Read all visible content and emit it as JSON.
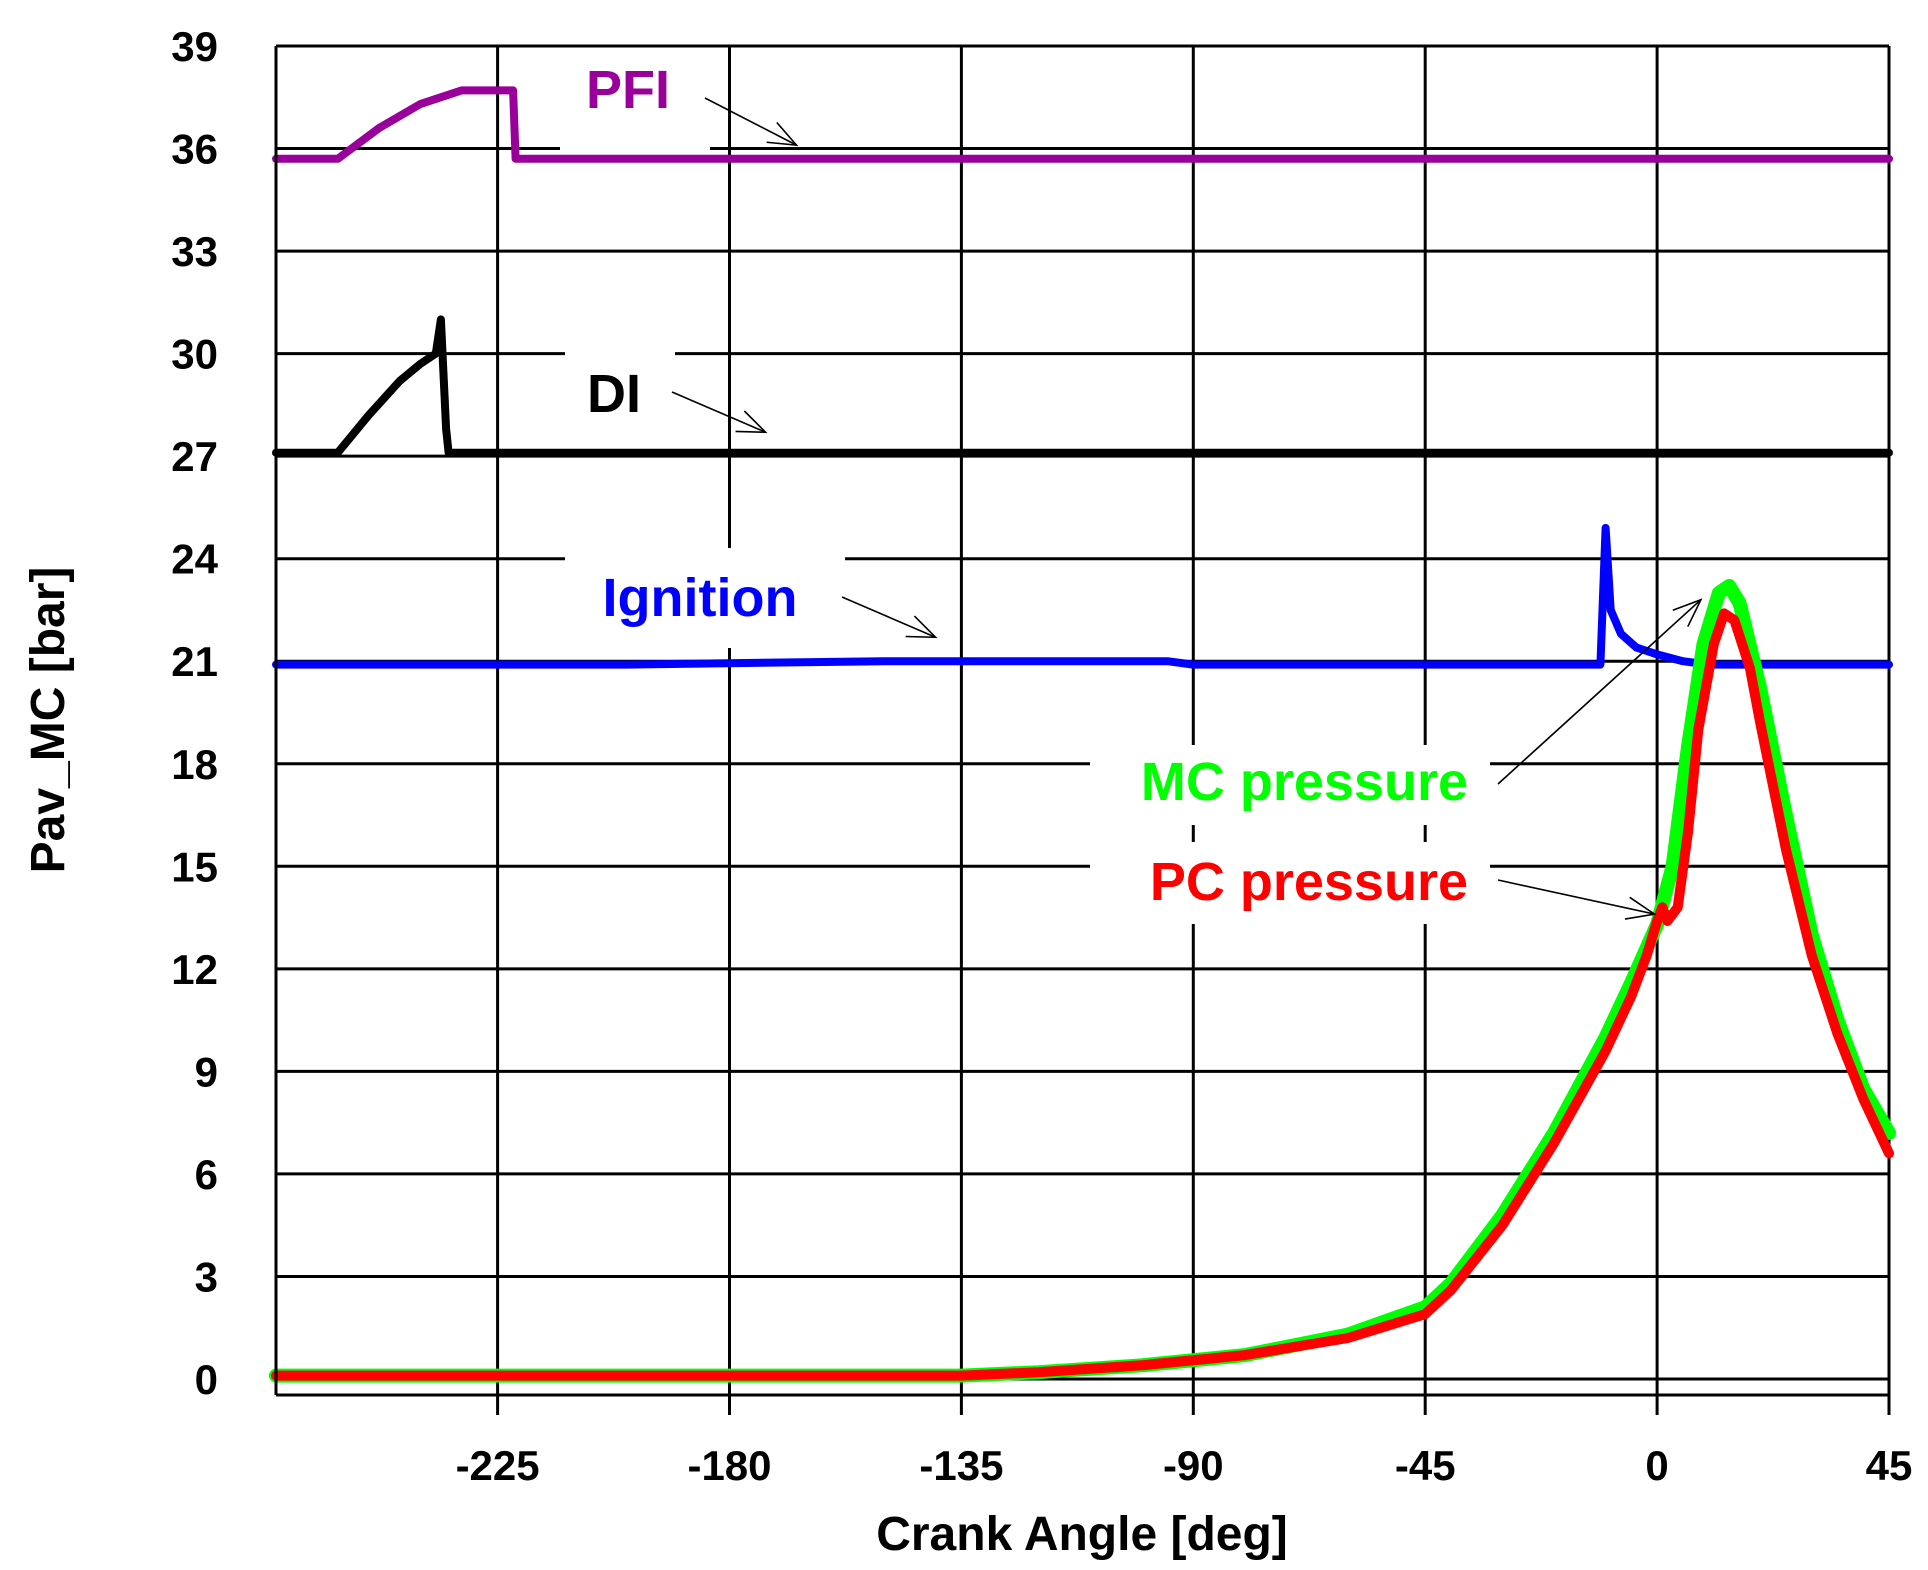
{
  "chart_data": {
    "type": "line",
    "title": "",
    "xlabel": "Crank Angle [deg]",
    "ylabel": "Pav_MC [bar]",
    "xlim": [
      -268,
      45
    ],
    "ylim": [
      0,
      39
    ],
    "x_ticks": [
      -225,
      -180,
      -135,
      -90,
      -45,
      0,
      45
    ],
    "y_ticks": [
      0,
      3,
      6,
      9,
      12,
      15,
      18,
      21,
      24,
      27,
      30,
      33,
      36,
      39
    ],
    "grid": true,
    "legend": "none (inline annotations with arrows)",
    "series": [
      {
        "name": "PFI",
        "color": "#990099",
        "x": [
          -268,
          -256,
          -248,
          -240,
          -232,
          -226,
          -222,
          -221.5,
          -200,
          -150,
          -100,
          -50,
          0,
          45
        ],
        "y": [
          35.7,
          35.7,
          36.6,
          37.3,
          37.7,
          37.7,
          37.7,
          35.7,
          35.7,
          35.7,
          35.7,
          35.7,
          35.7,
          35.7
        ]
      },
      {
        "name": "DI",
        "color": "#000000",
        "x": [
          -268,
          -256,
          -250,
          -244,
          -240,
          -237,
          -236,
          -235,
          -234.5,
          -230,
          -180,
          -120,
          -60,
          0,
          45
        ],
        "y": [
          27.1,
          27.1,
          28.2,
          29.2,
          29.7,
          30.0,
          31.0,
          27.8,
          27.1,
          27.1,
          27.1,
          27.1,
          27.1,
          27.1,
          27.1
        ]
      },
      {
        "name": "Ignition",
        "color": "#0000ff",
        "x": [
          -268,
          -200,
          -150,
          -95,
          -90,
          -50,
          -30,
          -12,
          -11,
          -10,
          -9,
          -7,
          -4,
          0,
          5,
          10,
          20,
          45
        ],
        "y": [
          20.9,
          20.9,
          21.0,
          21.0,
          20.9,
          20.9,
          20.9,
          20.9,
          20.9,
          24.9,
          22.5,
          21.8,
          21.4,
          21.2,
          21.0,
          20.9,
          20.9,
          20.9
        ]
      },
      {
        "name": "MC pressure",
        "color": "#00ff00",
        "x": [
          -268,
          -135,
          -120,
          -100,
          -80,
          -60,
          -45,
          -40,
          -30,
          -20,
          -10,
          -5,
          0,
          3,
          6,
          9,
          12,
          14,
          16,
          20,
          25,
          30,
          35,
          40,
          45
        ],
        "y": [
          0.1,
          0.1,
          0.2,
          0.4,
          0.7,
          1.3,
          2.1,
          2.8,
          4.8,
          7.2,
          10.0,
          11.6,
          13.3,
          15.0,
          18.5,
          21.5,
          23.0,
          23.2,
          22.7,
          20.2,
          16.5,
          13.0,
          10.5,
          8.5,
          7.2
        ]
      },
      {
        "name": "PC pressure",
        "color": "#ff0000",
        "x": [
          -268,
          -135,
          -120,
          -100,
          -80,
          -60,
          -45,
          -40,
          -30,
          -20,
          -10,
          -5,
          -2,
          0,
          1,
          2,
          3,
          4,
          6,
          8,
          11,
          13,
          15,
          18,
          20,
          25,
          30,
          35,
          40,
          45
        ],
        "y": [
          0.1,
          0.1,
          0.2,
          0.4,
          0.7,
          1.2,
          1.9,
          2.6,
          4.5,
          6.9,
          9.6,
          11.2,
          12.4,
          13.4,
          13.8,
          13.4,
          13.6,
          13.8,
          16.0,
          19.0,
          21.5,
          22.4,
          22.2,
          20.8,
          19.2,
          15.5,
          12.4,
          10.1,
          8.2,
          6.6
        ]
      }
    ],
    "annotations": [
      {
        "text": "PFI",
        "color": "#990099",
        "arrow_to": {
          "x": -167,
          "y": 36.1
        }
      },
      {
        "text": "DI",
        "color": "#000000",
        "arrow_to": {
          "x": -173,
          "y": 27.7
        }
      },
      {
        "text": "Ignition",
        "color": "#0000ff",
        "arrow_to": {
          "x": -140,
          "y": 21.7
        }
      },
      {
        "text": "MC pressure",
        "color": "#00ff00",
        "arrow_to": {
          "x": 8.5,
          "y": 22.8
        }
      },
      {
        "text": "PC pressure",
        "color": "#ff0000",
        "arrow_to": {
          "x": -0.5,
          "y": 13.6
        }
      }
    ]
  }
}
